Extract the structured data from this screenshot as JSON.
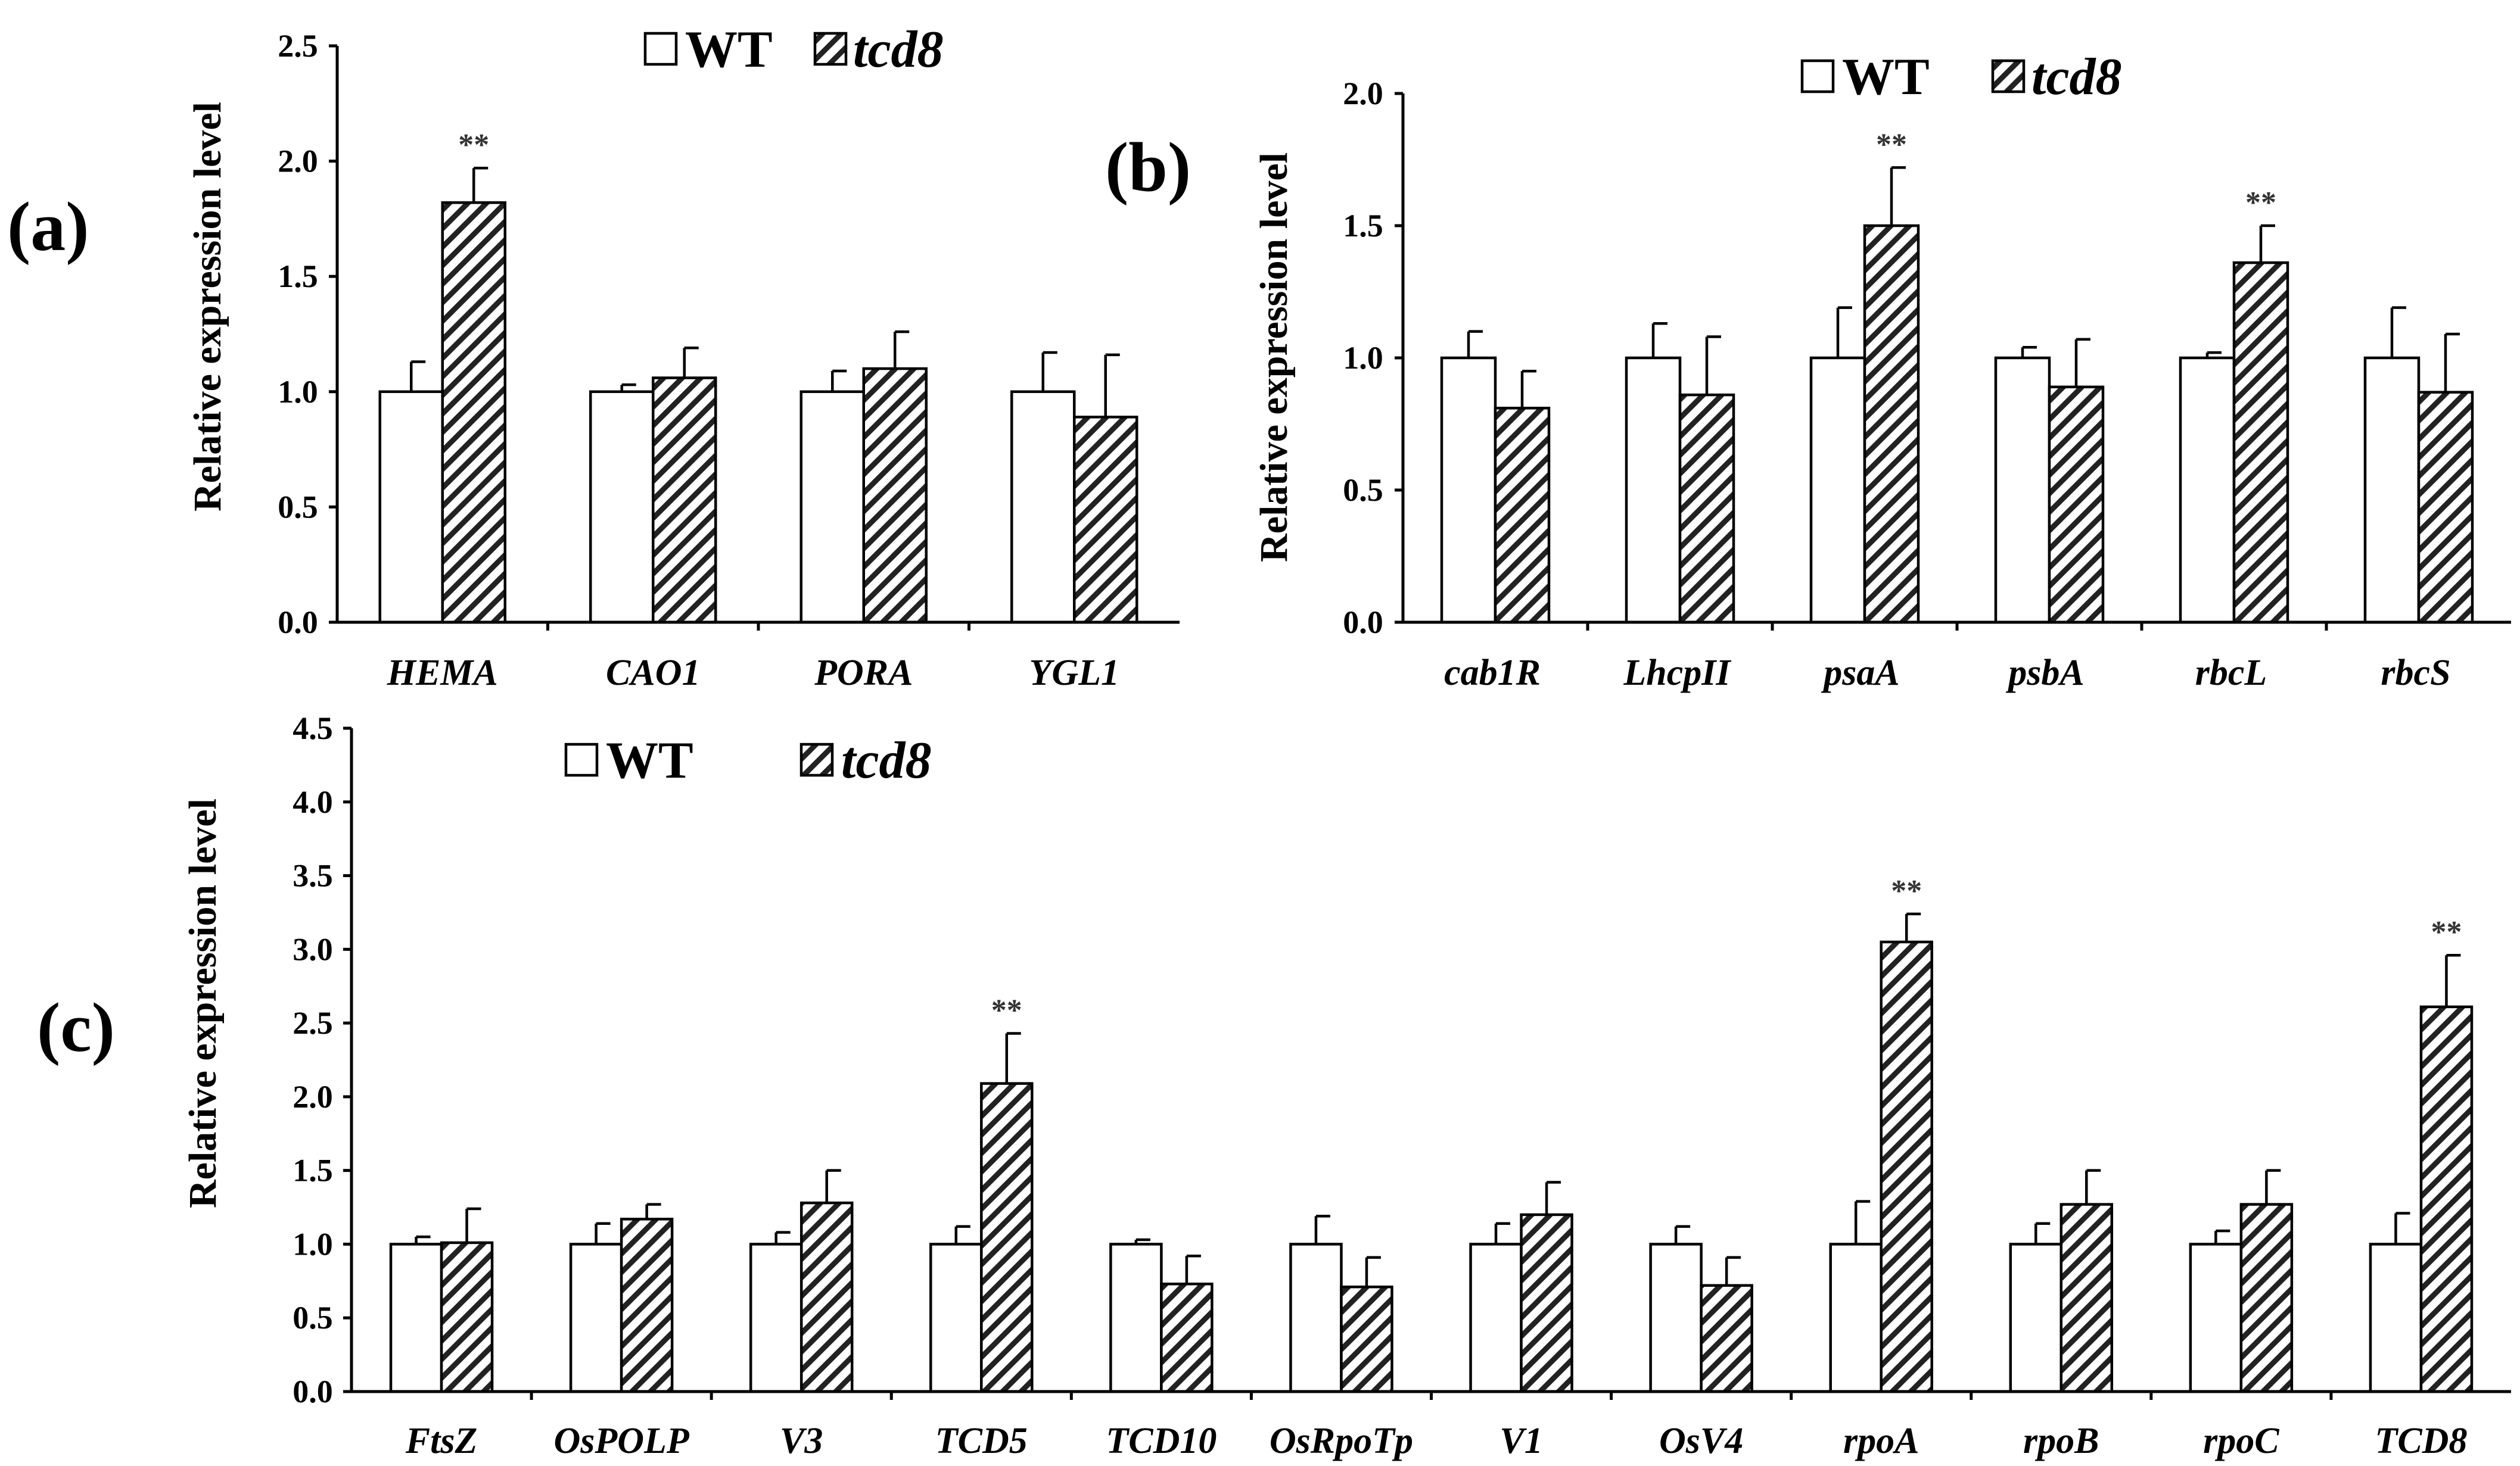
{
  "legend": {
    "wt": "WT",
    "mutant": "tcd8"
  },
  "y_axis_label": "Relative expression level",
  "significance_label": "**",
  "chart_data": [
    {
      "panel": "(a)",
      "type": "bar",
      "ylabel": "Relative expression level",
      "ylim": [
        0,
        2.5
      ],
      "yticks": [
        "0.0",
        "0.5",
        "1.0",
        "1.5",
        "2.0",
        "2.5"
      ],
      "legend_placement": "top",
      "categories": [
        "HEMA",
        "CAO1",
        "PORA",
        "YGL1"
      ],
      "series": [
        {
          "name": "WT",
          "values": [
            1.0,
            1.0,
            1.0,
            1.0
          ],
          "errors": [
            0.13,
            0.03,
            0.09,
            0.17
          ]
        },
        {
          "name": "tcd8",
          "values": [
            1.82,
            1.06,
            1.1,
            0.89
          ],
          "errors": [
            0.15,
            0.13,
            0.16,
            0.27
          ]
        }
      ],
      "significant": [
        "HEMA"
      ]
    },
    {
      "panel": "(b)",
      "type": "bar",
      "ylabel": "Relative expression level",
      "ylim": [
        0,
        2.0
      ],
      "yticks": [
        "0.0",
        "0.5",
        "1.0",
        "1.5",
        "2.0"
      ],
      "legend_placement": "top",
      "categories": [
        "cab1R",
        "LhcpII",
        "psaA",
        "psbA",
        "rbcL",
        "rbcS"
      ],
      "series": [
        {
          "name": "WT",
          "values": [
            1.0,
            1.0,
            1.0,
            1.0,
            1.0,
            1.0
          ],
          "errors": [
            0.1,
            0.13,
            0.19,
            0.04,
            0.02,
            0.19
          ]
        },
        {
          "name": "tcd8",
          "values": [
            0.81,
            0.86,
            1.5,
            0.89,
            1.36,
            0.87
          ],
          "errors": [
            0.14,
            0.22,
            0.22,
            0.18,
            0.14,
            0.22
          ]
        }
      ],
      "significant": [
        "psaA",
        "rbcL"
      ]
    },
    {
      "panel": "(c)",
      "type": "bar",
      "ylabel": "Relative expression level",
      "ylim": [
        0,
        4.5
      ],
      "yticks": [
        "0.0",
        "0.5",
        "1.0",
        "1.5",
        "2.0",
        "2.5",
        "3.0",
        "3.5",
        "4.0",
        "4.5"
      ],
      "legend_placement": "top-left",
      "categories": [
        "FtsZ",
        "OsPOLP",
        "V3",
        "TCD5",
        "TCD10",
        "OsRpoTp",
        "V1",
        "OsV4",
        "rpoA",
        "rpoB",
        "rpoC",
        "TCD8"
      ],
      "series": [
        {
          "name": "WT",
          "values": [
            1.0,
            1.0,
            1.0,
            1.0,
            1.0,
            1.0,
            1.0,
            1.0,
            1.0,
            1.0,
            1.0,
            1.0
          ],
          "errors": [
            0.05,
            0.14,
            0.08,
            0.12,
            0.03,
            0.19,
            0.14,
            0.12,
            0.29,
            0.14,
            0.09,
            0.21
          ]
        },
        {
          "name": "tcd8",
          "values": [
            1.01,
            1.17,
            1.28,
            2.09,
            0.73,
            0.71,
            1.2,
            0.72,
            3.05,
            1.27,
            1.27,
            2.61
          ],
          "errors": [
            0.23,
            0.1,
            0.22,
            0.34,
            0.19,
            0.2,
            0.22,
            0.19,
            0.19,
            0.23,
            0.23,
            0.35
          ]
        }
      ],
      "significant": [
        "TCD5",
        "rpoA",
        "TCD8"
      ]
    }
  ]
}
